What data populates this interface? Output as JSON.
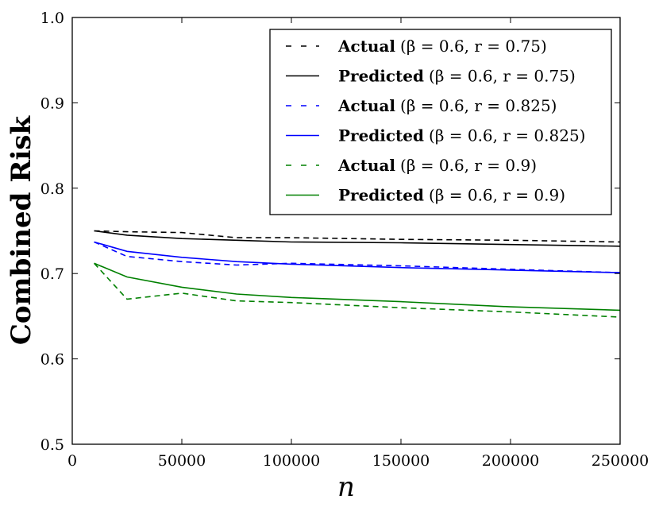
{
  "chart_data": {
    "type": "line",
    "title": "",
    "xlabel": "n",
    "ylabel": "Combined Risk",
    "xlim": [
      0,
      250000
    ],
    "ylim": [
      0.5,
      1.0
    ],
    "x_ticks": [
      0,
      50000,
      100000,
      150000,
      200000,
      250000
    ],
    "x_tick_labels": [
      "0",
      "50000",
      "100000",
      "150000",
      "200000",
      "250000"
    ],
    "y_ticks": [
      0.5,
      0.6,
      0.7,
      0.8,
      0.9,
      1.0
    ],
    "y_tick_labels": [
      "0.5",
      "0.6",
      "0.7",
      "0.8",
      "0.9",
      "1.0"
    ],
    "legend_position": "top-right",
    "x": [
      10000,
      25000,
      50000,
      75000,
      100000,
      150000,
      200000,
      250000
    ],
    "series": [
      {
        "name": "Actual",
        "params": "(β = 0.6, r = 0.75)",
        "color": "#000000",
        "style": "dashed",
        "values": [
          0.75,
          0.749,
          0.748,
          0.742,
          0.742,
          0.74,
          0.739,
          0.737
        ]
      },
      {
        "name": "Predicted",
        "params": "(β = 0.6, r = 0.75)",
        "color": "#000000",
        "style": "solid",
        "values": [
          0.75,
          0.745,
          0.741,
          0.739,
          0.737,
          0.736,
          0.734,
          0.732
        ]
      },
      {
        "name": "Actual",
        "params": "(β = 0.6, r = 0.825)",
        "color": "#0000ff",
        "style": "dashed",
        "values": [
          0.737,
          0.72,
          0.714,
          0.71,
          0.712,
          0.709,
          0.705,
          0.701
        ]
      },
      {
        "name": "Predicted",
        "params": "(β = 0.6, r = 0.825)",
        "color": "#0000ff",
        "style": "solid",
        "values": [
          0.737,
          0.726,
          0.719,
          0.714,
          0.711,
          0.707,
          0.704,
          0.701
        ]
      },
      {
        "name": "Actual",
        "params": "(β = 0.6, r = 0.9)",
        "color": "#008000",
        "style": "dashed",
        "values": [
          0.712,
          0.67,
          0.677,
          0.668,
          0.666,
          0.66,
          0.655,
          0.649
        ]
      },
      {
        "name": "Predicted",
        "params": "(β = 0.6, r = 0.9)",
        "color": "#008000",
        "style": "solid",
        "values": [
          0.712,
          0.696,
          0.684,
          0.676,
          0.672,
          0.667,
          0.661,
          0.657
        ]
      }
    ]
  }
}
